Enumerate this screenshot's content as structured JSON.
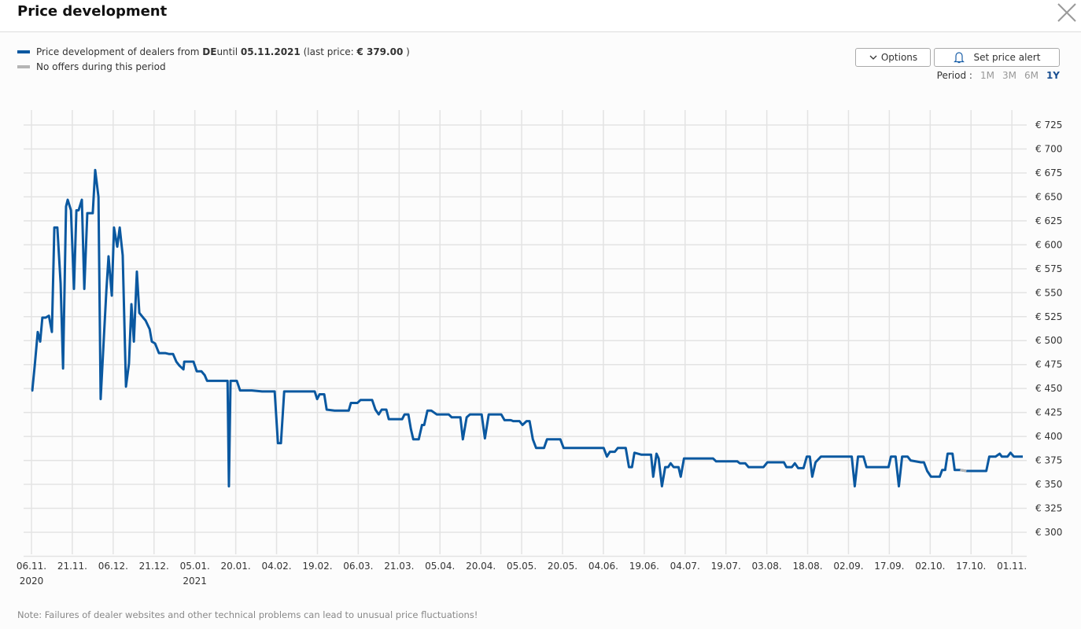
{
  "header": {
    "title": "Price development"
  },
  "legend": {
    "series_prefix": "Price development of dealers from ",
    "country": "DE",
    "until_word": "until ",
    "until_date": "05.11.2021",
    "last_price_prefix": " (last price: ",
    "last_price": "€ 379.00",
    "last_price_suffix": " )",
    "no_offers": "No offers during this period",
    "series_color": "#0a58a0",
    "gap_color": "#b5b5b5"
  },
  "toolbar": {
    "options_label": "Options",
    "alert_label": "Set price alert",
    "period_label": "Period :",
    "periods": [
      "1M",
      "3M",
      "6M",
      "1Y"
    ],
    "active_period": "1Y"
  },
  "note": "Note: Failures of dealer websites and other technical problems can lead to unusual price fluctuations!",
  "chart_data": {
    "type": "line",
    "x_unit": "days since 06.11.2020",
    "xlim": [
      0,
      364
    ],
    "ylim": [
      300,
      725
    ],
    "y_ticks": [
      300,
      325,
      350,
      375,
      400,
      425,
      450,
      475,
      500,
      525,
      550,
      575,
      600,
      625,
      650,
      675,
      700,
      725
    ],
    "y_tick_labels": [
      "€ 300",
      "€ 325",
      "€ 350",
      "€ 375",
      "€ 400",
      "€ 425",
      "€ 450",
      "€ 475",
      "€ 500",
      "€ 525",
      "€ 550",
      "€ 575",
      "€ 600",
      "€ 625",
      "€ 650",
      "€ 675",
      "€ 700",
      "€ 725"
    ],
    "x_ticks": [
      0,
      15,
      30,
      45,
      60,
      75,
      90,
      105,
      120,
      135,
      150,
      165,
      180,
      195,
      210,
      225,
      240,
      255,
      270,
      285,
      300,
      315,
      330,
      345,
      360
    ],
    "x_tick_labels": [
      "06.11.",
      "21.11.",
      "06.12.",
      "21.12.",
      "05.01.",
      "20.01.",
      "04.02.",
      "19.02.",
      "06.03.",
      "21.03.",
      "05.04.",
      "20.04.",
      "05.05.",
      "20.05.",
      "04.06.",
      "19.06.",
      "04.07.",
      "19.07.",
      "03.08.",
      "18.08.",
      "02.09.",
      "17.09.",
      "02.10.",
      "17.10.",
      "01.11."
    ],
    "x_year_labels": [
      {
        "tick": 0,
        "label": "2020"
      },
      {
        "tick": 60,
        "label": "2021"
      }
    ],
    "grid": true,
    "no_offer_ranges": [
      [
        341,
        343.3
      ]
    ],
    "series": [
      {
        "name": "Price development of dealers from DE",
        "points": [
          [
            0,
            448
          ],
          [
            0.3,
            448
          ],
          [
            1.2,
            474
          ],
          [
            2.3,
            509
          ],
          [
            3.2,
            499
          ],
          [
            4,
            524
          ],
          [
            5.2,
            524
          ],
          [
            6.4,
            526
          ],
          [
            7.5,
            509
          ],
          [
            8.4,
            618
          ],
          [
            9.5,
            618
          ],
          [
            10.7,
            560
          ],
          [
            11.6,
            471
          ],
          [
            12.7,
            640
          ],
          [
            13.3,
            647
          ],
          [
            14.5,
            636
          ],
          [
            15.6,
            554
          ],
          [
            16.5,
            636
          ],
          [
            17.3,
            636
          ],
          [
            18.5,
            647
          ],
          [
            19.4,
            554
          ],
          [
            20.5,
            633
          ],
          [
            22.5,
            633
          ],
          [
            23.4,
            678
          ],
          [
            24.6,
            650
          ],
          [
            25.4,
            439
          ],
          [
            26.6,
            504
          ],
          [
            27.5,
            552
          ],
          [
            28.3,
            588
          ],
          [
            29.5,
            547
          ],
          [
            30.3,
            618
          ],
          [
            31.5,
            598
          ],
          [
            32.4,
            618
          ],
          [
            33.5,
            589
          ],
          [
            34.7,
            452
          ],
          [
            35.8,
            476
          ],
          [
            36.7,
            538
          ],
          [
            37.6,
            499
          ],
          [
            38.7,
            572
          ],
          [
            39.6,
            529
          ],
          [
            41,
            524
          ],
          [
            41.9,
            521
          ],
          [
            43.4,
            512
          ],
          [
            44.2,
            499
          ],
          [
            45.4,
            497
          ],
          [
            46.8,
            487
          ],
          [
            49.1,
            487
          ],
          [
            50.6,
            486
          ],
          [
            52,
            486
          ],
          [
            53.2,
            478
          ],
          [
            54.3,
            474
          ],
          [
            55.8,
            470
          ],
          [
            56.1,
            478
          ],
          [
            59.5,
            478
          ],
          [
            60.7,
            468
          ],
          [
            62.4,
            468
          ],
          [
            63.6,
            464
          ],
          [
            64.5,
            458
          ],
          [
            72,
            458
          ],
          [
            72.5,
            348
          ],
          [
            73.1,
            458
          ],
          [
            75.4,
            458
          ],
          [
            76.6,
            448
          ],
          [
            80.9,
            448
          ],
          [
            84.7,
            447
          ],
          [
            89.3,
            447
          ],
          [
            90.5,
            393
          ],
          [
            91.6,
            393
          ],
          [
            92.8,
            447
          ],
          [
            104,
            447
          ],
          [
            104.9,
            439
          ],
          [
            105.8,
            444
          ],
          [
            107.5,
            444
          ],
          [
            108.4,
            428
          ],
          [
            111.3,
            427
          ],
          [
            116.5,
            427
          ],
          [
            117.3,
            435
          ],
          [
            119.7,
            435
          ],
          [
            120.8,
            438
          ],
          [
            125.1,
            438
          ],
          [
            126.3,
            428
          ],
          [
            127.5,
            423
          ],
          [
            128.6,
            428
          ],
          [
            130.3,
            428
          ],
          [
            131.2,
            418
          ],
          [
            136.1,
            418
          ],
          [
            137,
            423
          ],
          [
            138.4,
            423
          ],
          [
            139.3,
            408
          ],
          [
            140.2,
            397
          ],
          [
            142.2,
            397
          ],
          [
            143.4,
            412
          ],
          [
            144.2,
            412
          ],
          [
            145.4,
            427
          ],
          [
            146.8,
            427
          ],
          [
            148.8,
            423
          ],
          [
            153.2,
            423
          ],
          [
            154.3,
            420
          ],
          [
            157.5,
            420
          ],
          [
            158.4,
            397
          ],
          [
            159.8,
            420
          ],
          [
            161,
            423
          ],
          [
            165.3,
            423
          ],
          [
            166.5,
            398
          ],
          [
            167.9,
            423
          ],
          [
            172.5,
            423
          ],
          [
            173.7,
            417
          ],
          [
            176,
            417
          ],
          [
            176.9,
            416
          ],
          [
            179.2,
            416
          ],
          [
            180.3,
            412
          ],
          [
            181.8,
            416
          ],
          [
            182.9,
            416
          ],
          [
            184.1,
            397
          ],
          [
            185.3,
            388
          ],
          [
            188.2,
            388
          ],
          [
            189.3,
            397
          ],
          [
            190.8,
            397
          ],
          [
            194.2,
            397
          ],
          [
            195.4,
            388
          ],
          [
            210.1,
            388
          ],
          [
            211.3,
            379
          ],
          [
            212.4,
            384
          ],
          [
            214.2,
            384
          ],
          [
            215.3,
            388
          ],
          [
            218.2,
            388
          ],
          [
            219.4,
            368
          ],
          [
            220.5,
            368
          ],
          [
            221.4,
            383
          ],
          [
            224,
            381
          ],
          [
            227.5,
            381
          ],
          [
            228.3,
            358
          ],
          [
            229.5,
            382
          ],
          [
            230.3,
            377
          ],
          [
            231.5,
            348
          ],
          [
            232.7,
            368
          ],
          [
            233.8,
            368
          ],
          [
            234.7,
            372
          ],
          [
            235.8,
            368
          ],
          [
            237.6,
            368
          ],
          [
            238.4,
            358
          ],
          [
            239.6,
            377
          ],
          [
            250.3,
            377
          ],
          [
            251.4,
            374
          ],
          [
            259.2,
            374
          ],
          [
            260.1,
            372
          ],
          [
            262.1,
            372
          ],
          [
            263.3,
            368
          ],
          [
            268.8,
            368
          ],
          [
            270.2,
            373
          ],
          [
            276.3,
            373
          ],
          [
            277.2,
            368
          ],
          [
            279.2,
            368
          ],
          [
            280.3,
            372
          ],
          [
            281.5,
            367
          ],
          [
            283.5,
            367
          ],
          [
            284.7,
            379
          ],
          [
            285.8,
            379
          ],
          [
            286.7,
            358
          ],
          [
            287.9,
            373
          ],
          [
            289.9,
            379
          ],
          [
            301.2,
            379
          ],
          [
            302.3,
            348
          ],
          [
            303.5,
            379
          ],
          [
            305.5,
            379
          ],
          [
            306.6,
            368
          ],
          [
            314.7,
            368
          ],
          [
            315.6,
            379
          ],
          [
            317.3,
            379
          ],
          [
            318.5,
            348
          ],
          [
            319.7,
            379
          ],
          [
            321.7,
            379
          ],
          [
            322.8,
            375
          ],
          [
            326.6,
            373
          ],
          [
            327.7,
            373
          ],
          [
            328.9,
            364
          ],
          [
            330.3,
            358
          ],
          [
            333.5,
            358
          ],
          [
            334.4,
            365
          ],
          [
            335.5,
            365
          ],
          [
            336.4,
            382
          ],
          [
            338.2,
            382
          ],
          [
            339,
            365
          ],
          [
            341,
            365
          ],
          [
            343.3,
            364
          ],
          [
            350.6,
            364
          ],
          [
            351.7,
            379
          ],
          [
            354,
            379
          ],
          [
            355.5,
            382
          ],
          [
            356.3,
            379
          ],
          [
            358.4,
            379
          ],
          [
            359.5,
            383
          ],
          [
            360.7,
            379
          ],
          [
            364,
            379
          ]
        ]
      }
    ]
  }
}
